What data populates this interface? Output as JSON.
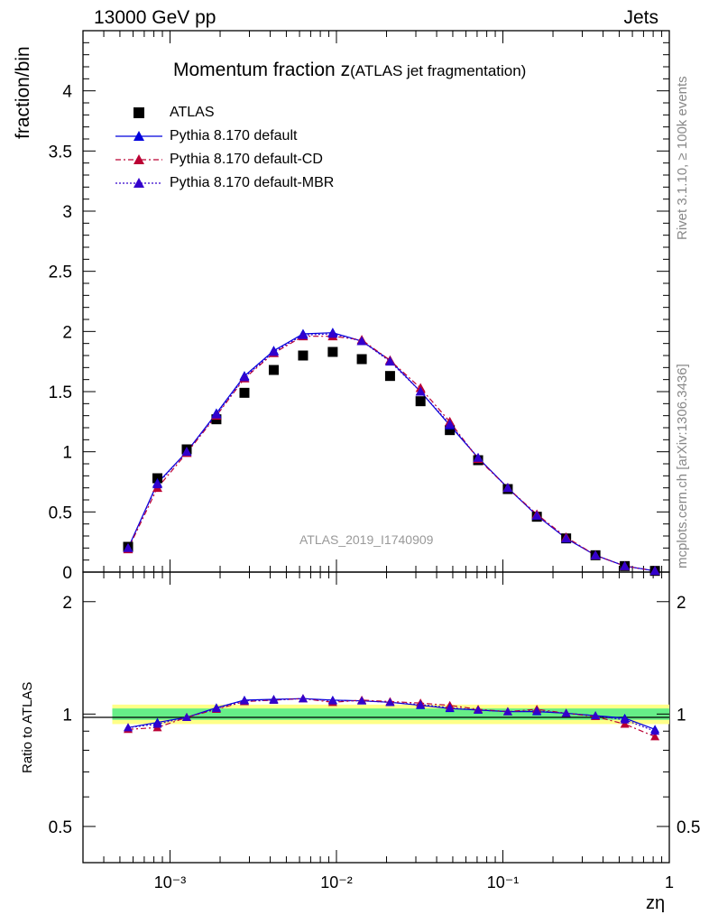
{
  "header": {
    "left": "13000 GeV pp",
    "right": "Jets"
  },
  "side_labels": {
    "rivet": "Rivet 3.1.10, ≥ 100k events",
    "mcplots": "mcplots.cern.ch [arXiv:1306.3436]"
  },
  "title": {
    "main": "Momentum fraction z",
    "sub": "(ATLAS jet fragmentation)"
  },
  "reference_label": "ATLAS_2019_I1740909",
  "legend": [
    {
      "label": "ATLAS",
      "color": "#000000",
      "marker": "square",
      "line": "none"
    },
    {
      "label": "Pythia 8.170 default",
      "color": "#0000dd",
      "marker": "triangle",
      "line": "solid"
    },
    {
      "label": "Pythia 8.170 default-CD",
      "color": "#bb0033",
      "marker": "triangle",
      "line": "dashdot"
    },
    {
      "label": "Pythia 8.170 default-MBR",
      "color": "#3300cc",
      "marker": "triangle",
      "line": "dotted"
    }
  ],
  "chart_data": {
    "type": "scatter",
    "title": "Momentum fraction z (ATLAS jet fragmentation)",
    "xlabel": "zη",
    "ylabel": "fraction/bin",
    "ratio_ylabel": "Ratio to ATLAS",
    "xscale": "log",
    "xlim": [
      0.0003,
      1
    ],
    "ylim": [
      0,
      4.5
    ],
    "ratio_ylim": [
      0.4,
      2.4
    ],
    "x_tick_labels": [
      "10⁻³",
      "10⁻²",
      "10⁻¹",
      "1"
    ],
    "y_tick_labels": [
      "0",
      "0.5",
      "1",
      "1.5",
      "2",
      "2.5",
      "3",
      "3.5",
      "4"
    ],
    "ratio_tick_labels": [
      "0.5",
      "1",
      "2"
    ],
    "x": [
      0.00056,
      0.00084,
      0.00126,
      0.0019,
      0.0028,
      0.0042,
      0.0063,
      0.0095,
      0.0142,
      0.021,
      0.032,
      0.048,
      0.071,
      0.107,
      0.16,
      0.24,
      0.36,
      0.54,
      0.82
    ],
    "series": [
      {
        "name": "ATLAS",
        "values": [
          0.21,
          0.78,
          1.02,
          1.27,
          1.49,
          1.68,
          1.8,
          1.83,
          1.77,
          1.63,
          1.42,
          1.18,
          0.93,
          0.69,
          0.46,
          0.28,
          0.14,
          0.05,
          0.01
        ]
      },
      {
        "name": "Pythia 8.170 default",
        "values": [
          0.2,
          0.74,
          1.0,
          1.32,
          1.63,
          1.84,
          1.98,
          1.99,
          1.92,
          1.76,
          1.5,
          1.22,
          0.95,
          0.7,
          0.47,
          0.28,
          0.14,
          0.05,
          0.01
        ],
        "ratio": [
          0.92,
          0.95,
          0.98,
          1.04,
          1.09,
          1.095,
          1.1,
          1.09,
          1.085,
          1.075,
          1.055,
          1.035,
          1.025,
          1.015,
          1.015,
          1.005,
          0.99,
          0.975,
          0.91
        ]
      },
      {
        "name": "Pythia 8.170 default-CD",
        "values": [
          0.19,
          0.7,
          0.99,
          1.3,
          1.61,
          1.82,
          1.96,
          1.96,
          1.93,
          1.76,
          1.53,
          1.25,
          0.94,
          0.7,
          0.48,
          0.29,
          0.14,
          0.05,
          0.01
        ],
        "ratio": [
          0.91,
          0.92,
          0.98,
          1.03,
          1.08,
          1.09,
          1.1,
          1.075,
          1.09,
          1.08,
          1.07,
          1.055,
          1.03,
          1.015,
          1.03,
          1.005,
          0.985,
          0.94,
          0.87
        ]
      },
      {
        "name": "Pythia 8.170 default-MBR",
        "values": [
          0.2,
          0.73,
          1.0,
          1.31,
          1.62,
          1.83,
          1.97,
          1.98,
          1.92,
          1.75,
          1.5,
          1.23,
          0.95,
          0.7,
          0.47,
          0.28,
          0.14,
          0.05,
          0.01
        ],
        "ratio": [
          0.92,
          0.94,
          0.98,
          1.035,
          1.085,
          1.09,
          1.1,
          1.085,
          1.085,
          1.075,
          1.06,
          1.04,
          1.025,
          1.015,
          1.02,
          1.005,
          0.99,
          0.965,
          0.9
        ]
      }
    ],
    "colors": {
      "atlas": "#000000",
      "default": "#0000dd",
      "cd": "#bb0033",
      "mbr": "#3300cc",
      "band_green": "#66ee88",
      "band_yellow": "#ffff88"
    }
  }
}
